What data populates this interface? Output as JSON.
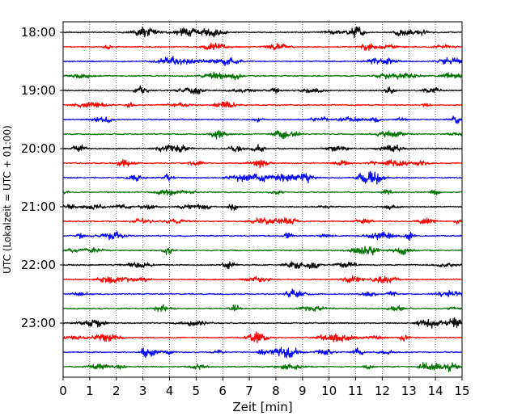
{
  "chart_data": {
    "type": "line",
    "title": "",
    "xlabel": "Zeit  [min]",
    "ylabel": "UTC (Lokalzeit = UTC + 01:00)",
    "xlim": [
      0,
      15
    ],
    "x_ticks": [
      "0",
      "1",
      "2",
      "3",
      "4",
      "5",
      "6",
      "7",
      "8",
      "9",
      "10",
      "11",
      "12",
      "13",
      "14",
      "15"
    ],
    "y_ticks": [
      "18:00",
      "19:00",
      "20:00",
      "21:00",
      "22:00",
      "23:00"
    ],
    "grid": "vertical dotted lines at each minute",
    "series_colors": [
      "#000000",
      "#ff0000",
      "#0000ff",
      "#007000"
    ],
    "row_start_times": [
      "18:00",
      "18:15",
      "18:30",
      "18:45",
      "19:00",
      "19:15",
      "19:30",
      "19:45",
      "20:00",
      "20:15",
      "20:30",
      "20:45",
      "21:00",
      "21:15",
      "21:30",
      "21:45",
      "22:00",
      "22:15",
      "22:30",
      "22:45",
      "23:00",
      "23:15",
      "23:30",
      "23:45"
    ]
  }
}
